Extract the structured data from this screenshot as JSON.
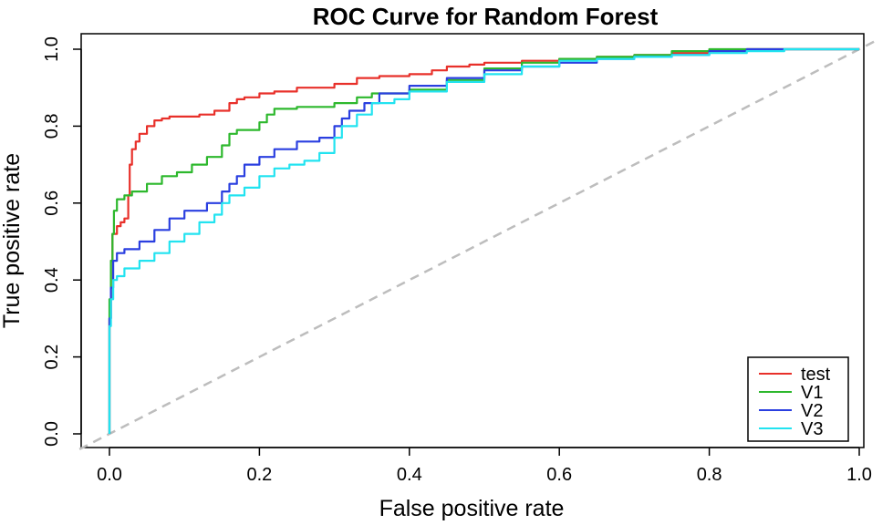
{
  "chart_data": {
    "type": "line",
    "title": "ROC Curve for Random Forest",
    "xlabel": "False positive rate",
    "ylabel": "True positive rate",
    "xlim": [
      0,
      1
    ],
    "ylim": [
      0,
      1
    ],
    "x_ticks": [
      0.0,
      0.2,
      0.4,
      0.6,
      0.8,
      1.0
    ],
    "y_ticks": [
      0.0,
      0.2,
      0.4,
      0.6,
      0.8,
      1.0
    ],
    "x_tick_labels": [
      "0.0",
      "0.2",
      "0.4",
      "0.6",
      "0.8",
      "1.0"
    ],
    "y_tick_labels": [
      "0.0",
      "0.2",
      "0.4",
      "0.6",
      "0.8",
      "1.0"
    ],
    "grid": false,
    "legend_position": "bottom-right",
    "reference_line": {
      "style": "dashed",
      "color": "#bdbdbd",
      "points": [
        [
          0,
          0
        ],
        [
          1,
          1
        ]
      ]
    },
    "series": [
      {
        "name": "test",
        "color": "#e8302a",
        "points": [
          [
            0,
            0
          ],
          [
            0.002,
            0.3
          ],
          [
            0.004,
            0.45
          ],
          [
            0.01,
            0.52
          ],
          [
            0.015,
            0.54
          ],
          [
            0.02,
            0.55
          ],
          [
            0.025,
            0.56
          ],
          [
            0.027,
            0.62
          ],
          [
            0.03,
            0.7
          ],
          [
            0.035,
            0.74
          ],
          [
            0.04,
            0.76
          ],
          [
            0.05,
            0.78
          ],
          [
            0.06,
            0.8
          ],
          [
            0.07,
            0.815
          ],
          [
            0.08,
            0.82
          ],
          [
            0.1,
            0.825
          ],
          [
            0.12,
            0.825
          ],
          [
            0.14,
            0.83
          ],
          [
            0.16,
            0.84
          ],
          [
            0.17,
            0.86
          ],
          [
            0.18,
            0.87
          ],
          [
            0.2,
            0.875
          ],
          [
            0.22,
            0.885
          ],
          [
            0.25,
            0.89
          ],
          [
            0.3,
            0.9
          ],
          [
            0.33,
            0.91
          ],
          [
            0.36,
            0.925
          ],
          [
            0.4,
            0.93
          ],
          [
            0.43,
            0.935
          ],
          [
            0.45,
            0.945
          ],
          [
            0.48,
            0.955
          ],
          [
            0.5,
            0.96
          ],
          [
            0.55,
            0.965
          ],
          [
            0.6,
            0.97
          ],
          [
            0.65,
            0.975
          ],
          [
            0.7,
            0.98
          ],
          [
            0.75,
            0.985
          ],
          [
            0.8,
            0.99
          ],
          [
            0.85,
            0.995
          ],
          [
            0.9,
            1.0
          ],
          [
            1.0,
            1.0
          ]
        ]
      },
      {
        "name": "V1",
        "color": "#2db82d",
        "points": [
          [
            0,
            0
          ],
          [
            0.002,
            0.35
          ],
          [
            0.004,
            0.45
          ],
          [
            0.006,
            0.52
          ],
          [
            0.01,
            0.58
          ],
          [
            0.02,
            0.61
          ],
          [
            0.03,
            0.62
          ],
          [
            0.05,
            0.63
          ],
          [
            0.07,
            0.65
          ],
          [
            0.09,
            0.67
          ],
          [
            0.11,
            0.68
          ],
          [
            0.13,
            0.7
          ],
          [
            0.15,
            0.72
          ],
          [
            0.16,
            0.75
          ],
          [
            0.17,
            0.78
          ],
          [
            0.2,
            0.79
          ],
          [
            0.21,
            0.81
          ],
          [
            0.22,
            0.83
          ],
          [
            0.25,
            0.845
          ],
          [
            0.3,
            0.85
          ],
          [
            0.33,
            0.86
          ],
          [
            0.35,
            0.875
          ],
          [
            0.4,
            0.885
          ],
          [
            0.45,
            0.895
          ],
          [
            0.5,
            0.92
          ],
          [
            0.55,
            0.95
          ],
          [
            0.6,
            0.965
          ],
          [
            0.65,
            0.975
          ],
          [
            0.7,
            0.98
          ],
          [
            0.75,
            0.985
          ],
          [
            0.8,
            0.995
          ],
          [
            0.85,
            1.0
          ],
          [
            0.9,
            1.0
          ],
          [
            1.0,
            1.0
          ]
        ]
      },
      {
        "name": "V2",
        "color": "#2a3fe0",
        "points": [
          [
            0,
            0
          ],
          [
            0.002,
            0.3
          ],
          [
            0.005,
            0.38
          ],
          [
            0.01,
            0.45
          ],
          [
            0.02,
            0.47
          ],
          [
            0.04,
            0.48
          ],
          [
            0.06,
            0.5
          ],
          [
            0.08,
            0.53
          ],
          [
            0.1,
            0.56
          ],
          [
            0.13,
            0.58
          ],
          [
            0.15,
            0.6
          ],
          [
            0.16,
            0.63
          ],
          [
            0.17,
            0.65
          ],
          [
            0.18,
            0.67
          ],
          [
            0.2,
            0.7
          ],
          [
            0.22,
            0.72
          ],
          [
            0.25,
            0.74
          ],
          [
            0.28,
            0.76
          ],
          [
            0.3,
            0.77
          ],
          [
            0.31,
            0.8
          ],
          [
            0.32,
            0.82
          ],
          [
            0.34,
            0.84
          ],
          [
            0.36,
            0.86
          ],
          [
            0.4,
            0.885
          ],
          [
            0.45,
            0.905
          ],
          [
            0.5,
            0.925
          ],
          [
            0.55,
            0.945
          ],
          [
            0.6,
            0.955
          ],
          [
            0.65,
            0.965
          ],
          [
            0.7,
            0.975
          ],
          [
            0.75,
            0.98
          ],
          [
            0.8,
            0.985
          ],
          [
            0.85,
            0.995
          ],
          [
            0.9,
            1.0
          ],
          [
            1.0,
            1.0
          ]
        ]
      },
      {
        "name": "V3",
        "color": "#22e3f0",
        "points": [
          [
            0,
            0
          ],
          [
            0.002,
            0.28
          ],
          [
            0.005,
            0.35
          ],
          [
            0.01,
            0.4
          ],
          [
            0.02,
            0.41
          ],
          [
            0.04,
            0.43
          ],
          [
            0.06,
            0.45
          ],
          [
            0.08,
            0.47
          ],
          [
            0.1,
            0.5
          ],
          [
            0.12,
            0.52
          ],
          [
            0.14,
            0.55
          ],
          [
            0.15,
            0.57
          ],
          [
            0.16,
            0.6
          ],
          [
            0.18,
            0.62
          ],
          [
            0.2,
            0.64
          ],
          [
            0.22,
            0.67
          ],
          [
            0.24,
            0.69
          ],
          [
            0.26,
            0.7
          ],
          [
            0.28,
            0.71
          ],
          [
            0.3,
            0.73
          ],
          [
            0.31,
            0.77
          ],
          [
            0.33,
            0.8
          ],
          [
            0.35,
            0.83
          ],
          [
            0.38,
            0.86
          ],
          [
            0.4,
            0.87
          ],
          [
            0.45,
            0.89
          ],
          [
            0.5,
            0.915
          ],
          [
            0.55,
            0.935
          ],
          [
            0.6,
            0.955
          ],
          [
            0.65,
            0.97
          ],
          [
            0.7,
            0.975
          ],
          [
            0.75,
            0.98
          ],
          [
            0.8,
            0.985
          ],
          [
            0.85,
            0.99
          ],
          [
            0.9,
            0.995
          ],
          [
            1.0,
            1.0
          ]
        ]
      }
    ]
  }
}
